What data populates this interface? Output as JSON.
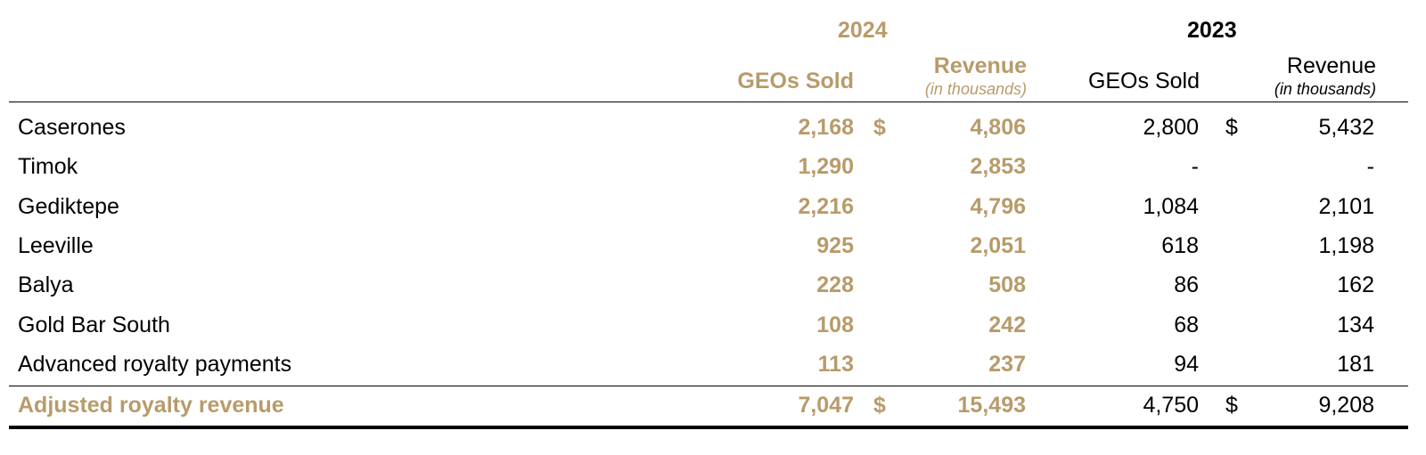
{
  "header": {
    "year_current": "2024",
    "year_prior": "2023",
    "geos_sold": "GEOs Sold",
    "revenue": "Revenue",
    "in_thousands": "(in thousands)"
  },
  "rows": [
    {
      "label": "Caserones",
      "geos_2024": "2,168",
      "dollar_2024": "$",
      "rev_2024": "4,806",
      "geos_2023": "2,800",
      "dollar_2023": "$",
      "rev_2023": "5,432"
    },
    {
      "label": "Timok",
      "geos_2024": "1,290",
      "dollar_2024": "",
      "rev_2024": "2,853",
      "geos_2023": "-",
      "dollar_2023": "",
      "rev_2023": "-"
    },
    {
      "label": "Gediktepe",
      "geos_2024": "2,216",
      "dollar_2024": "",
      "rev_2024": "4,796",
      "geos_2023": "1,084",
      "dollar_2023": "",
      "rev_2023": "2,101"
    },
    {
      "label": "Leeville",
      "geos_2024": "925",
      "dollar_2024": "",
      "rev_2024": "2,051",
      "geos_2023": "618",
      "dollar_2023": "",
      "rev_2023": "1,198"
    },
    {
      "label": "Balya",
      "geos_2024": "228",
      "dollar_2024": "",
      "rev_2024": "508",
      "geos_2023": "86",
      "dollar_2023": "",
      "rev_2023": "162"
    },
    {
      "label": "Gold Bar South",
      "geos_2024": "108",
      "dollar_2024": "",
      "rev_2024": "242",
      "geos_2023": "68",
      "dollar_2023": "",
      "rev_2023": "134"
    },
    {
      "label": "Advanced royalty payments",
      "geos_2024": "113",
      "dollar_2024": "",
      "rev_2024": "237",
      "geos_2023": "94",
      "dollar_2023": "",
      "rev_2023": "181"
    }
  ],
  "total": {
    "label": "Adjusted royalty revenue",
    "geos_2024": "7,047",
    "dollar_2024": "$",
    "rev_2024": "15,493",
    "geos_2023": "4,750",
    "dollar_2023": "$",
    "rev_2023": "9,208"
  },
  "colors": {
    "accent_gold": "#b89b6a",
    "text": "#000000"
  }
}
